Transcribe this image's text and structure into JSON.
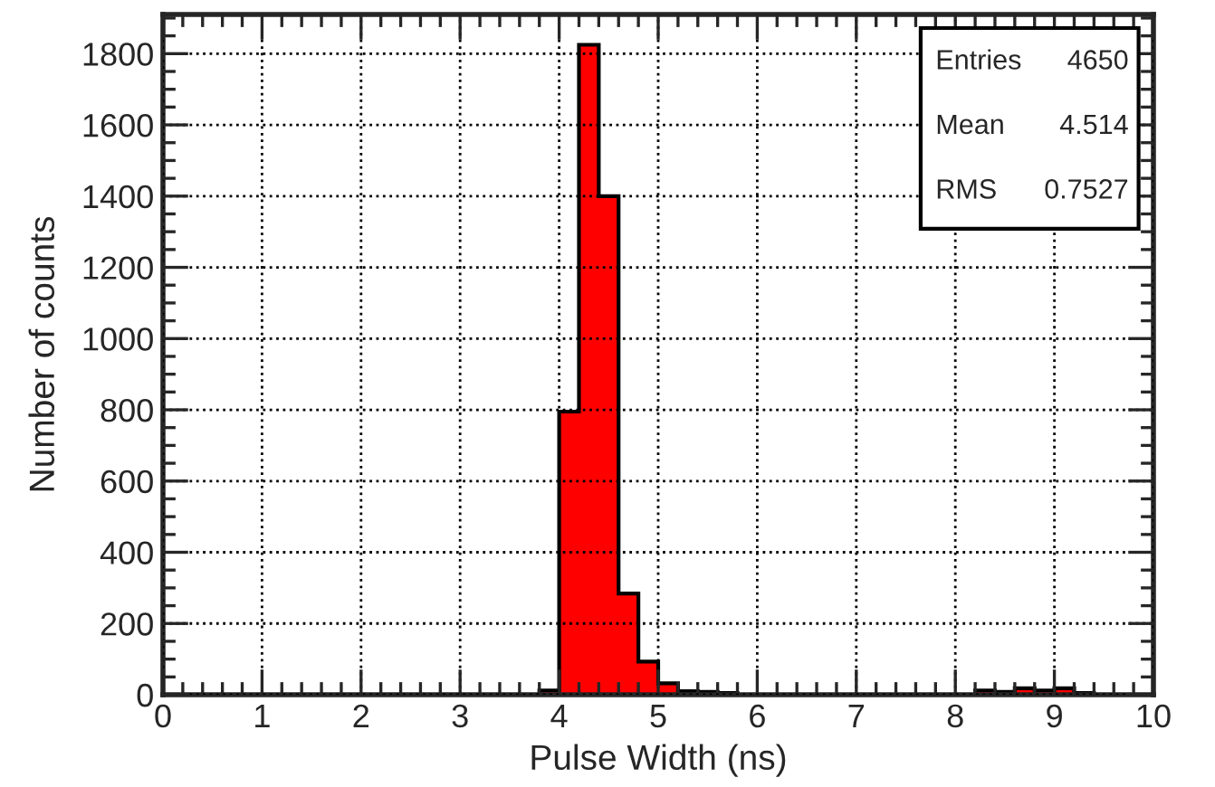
{
  "chart_data": {
    "type": "histogram",
    "xlabel": "Pulse Width (ns)",
    "ylabel": "Number of counts",
    "bins": [
      0,
      0.2,
      0.4,
      0.6,
      0.8,
      1,
      1.2,
      1.4,
      1.6,
      1.8,
      2,
      2.2,
      2.4,
      2.6,
      2.8,
      3,
      3.2,
      3.4,
      3.6,
      3.8,
      4,
      4.2,
      4.4,
      4.6,
      4.8,
      5,
      5.2,
      5.4,
      5.6,
      5.8,
      6,
      6.2,
      6.4,
      6.6,
      6.8,
      7,
      7.2,
      7.4,
      7.6,
      7.8,
      8,
      8.2,
      8.4,
      8.6,
      8.8,
      9,
      9.2,
      9.4,
      9.6,
      9.8,
      10
    ],
    "values": [
      0,
      0,
      0,
      0,
      0,
      0,
      0,
      0,
      0,
      0,
      0,
      0,
      0,
      0,
      0,
      0,
      0,
      0,
      0,
      12,
      795,
      1825,
      1400,
      284,
      93,
      32,
      10,
      8,
      5,
      0,
      0,
      0,
      0,
      0,
      0,
      0,
      0,
      0,
      0,
      0,
      0,
      12,
      8,
      18,
      12,
      18,
      5,
      0,
      0,
      0
    ],
    "color": "#ff0000",
    "xlim": [
      0,
      10
    ],
    "ylim": [
      0,
      1910
    ],
    "xticks": [
      0,
      1,
      2,
      3,
      4,
      5,
      6,
      7,
      8,
      9,
      10
    ],
    "yticks": [
      0,
      200,
      400,
      600,
      800,
      1000,
      1200,
      1400,
      1600,
      1800
    ],
    "grid": true,
    "annotations": [
      "Entries",
      "4650",
      "Mean",
      "4.514",
      "RMS",
      "0.7527"
    ]
  }
}
